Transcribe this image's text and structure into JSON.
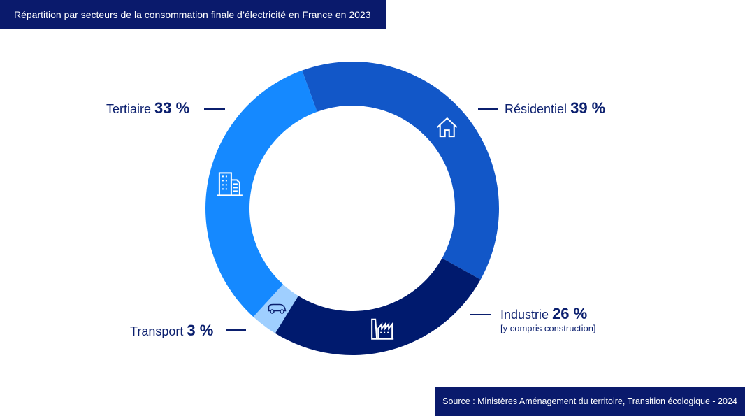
{
  "title": "Répartition par secteurs de la consommation finale d’électricité en France en 2023",
  "source": "Source : Ministères Aménagement du territoire, Transition écologique - 2024",
  "chart_data": {
    "type": "pie",
    "donut": true,
    "title": "Répartition par secteurs de la consommation finale d’électricité en France en 2023",
    "unit": "%",
    "slices": [
      {
        "name": "Résidentiel",
        "value": 39,
        "value_label": "39 %",
        "color": "#1257c8",
        "icon": "house-icon"
      },
      {
        "name": "Industrie",
        "value": 26,
        "value_label": "26 %",
        "note": "[y compris construction]",
        "color": "#001a6e",
        "icon": "factory-icon"
      },
      {
        "name": "Transport",
        "value": 3,
        "value_label": "3 %",
        "color": "#9fcfff",
        "icon": "electric-car-icon"
      },
      {
        "name": "Tertiaire",
        "value": 33,
        "value_label": "33 %",
        "color": "#1589ff",
        "icon": "office-building-icon"
      }
    ]
  }
}
